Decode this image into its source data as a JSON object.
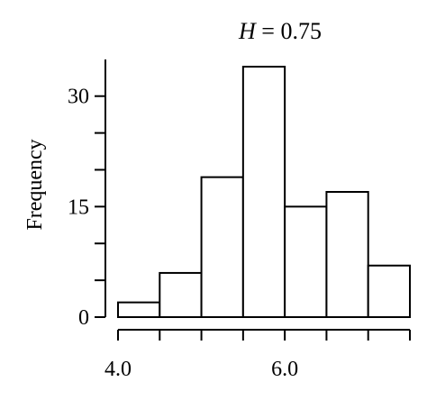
{
  "chart_data": {
    "type": "bar",
    "title": "H = 0.75",
    "title_var": "H",
    "title_rest": " = 0.75",
    "ylabel": "Frequency",
    "xlabel": "",
    "bin_edges": [
      4.0,
      4.5,
      5.0,
      5.5,
      6.0,
      6.5,
      7.0,
      7.5
    ],
    "values": [
      2,
      6,
      19,
      34,
      15,
      17,
      7
    ],
    "xlim": [
      4.0,
      7.5
    ],
    "ylim": [
      0,
      34
    ],
    "x_ticks": [
      4.0,
      4.5,
      5.0,
      5.5,
      6.0,
      6.5,
      7.0,
      7.5
    ],
    "x_tick_labels": [
      {
        "value": 4.0,
        "text": "4.0"
      },
      {
        "value": 6.0,
        "text": "6.0"
      }
    ],
    "y_ticks": [
      0,
      5,
      10,
      15,
      20,
      25,
      30
    ],
    "y_tick_labels": [
      {
        "value": 0,
        "text": "0"
      },
      {
        "value": 15,
        "text": "15"
      },
      {
        "value": 30,
        "text": "30"
      }
    ],
    "grid": false,
    "legend": "none"
  }
}
